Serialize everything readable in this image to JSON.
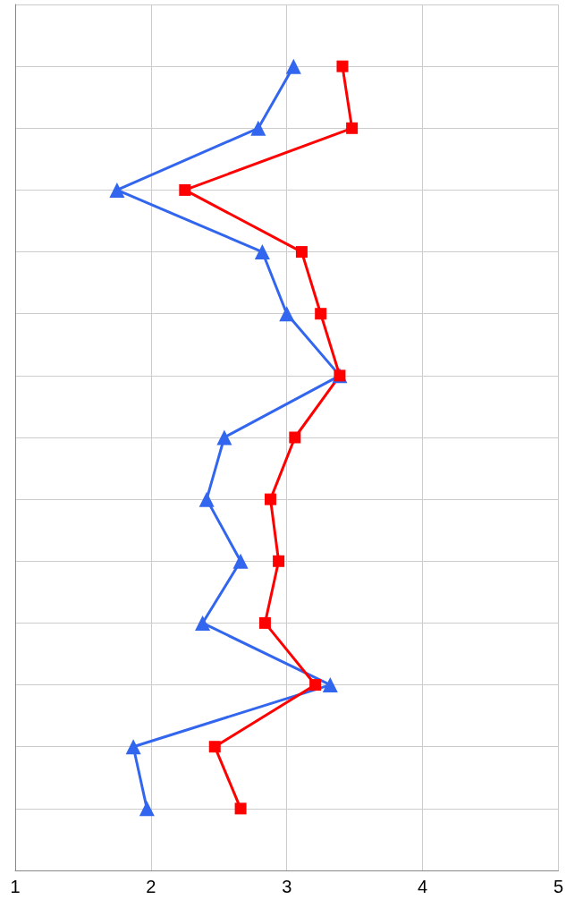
{
  "chart_data": {
    "type": "line",
    "orientation": "horizontal",
    "categories": [
      null,
      null,
      null,
      null,
      null,
      null,
      null,
      null,
      null,
      null,
      null,
      null,
      null
    ],
    "series": [
      {
        "color": "#3366ee",
        "marker": "triangle",
        "values": [
          3.05,
          2.79,
          1.75,
          2.82,
          3.0,
          3.39,
          2.54,
          2.41,
          2.66,
          2.38,
          3.32,
          1.87,
          1.97
        ]
      },
      {
        "color": "#ff0000",
        "marker": "square",
        "values": [
          3.41,
          3.48,
          2.25,
          3.11,
          3.25,
          3.39,
          3.06,
          2.88,
          2.94,
          2.84,
          3.21,
          2.47,
          2.66
        ]
      }
    ],
    "xlim": [
      1,
      5
    ],
    "xticks": [
      1,
      2,
      3,
      4,
      5
    ],
    "grid": true,
    "tick_labels": "x",
    "line_style": "solid"
  }
}
